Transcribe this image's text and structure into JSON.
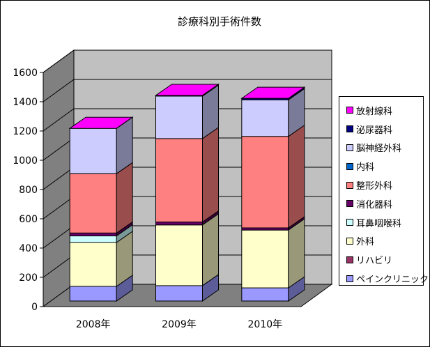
{
  "chart_data": {
    "type": "bar",
    "stacked": true,
    "three_d": true,
    "title": "診療科別手術件数",
    "categories": [
      "2008年",
      "2009年",
      "2010年"
    ],
    "ylim": [
      0,
      1600
    ],
    "yticks": [
      0,
      200,
      400,
      600,
      800,
      1000,
      1200,
      1400,
      1600
    ],
    "grid": true,
    "legend_position": "right",
    "series": [
      {
        "name": "ペインクリニック",
        "color": "#9999ff",
        "values": [
          100,
          105,
          90
        ]
      },
      {
        "name": "リハビリ",
        "color": "#993366",
        "values": [
          0,
          0,
          0
        ]
      },
      {
        "name": "外科",
        "color": "#ffffcc",
        "values": [
          300,
          415,
          395
        ]
      },
      {
        "name": "耳鼻咽喉科",
        "color": "#ccffff",
        "values": [
          45,
          0,
          0
        ]
      },
      {
        "name": "消化器科",
        "color": "#660066",
        "values": [
          20,
          20,
          15
        ]
      },
      {
        "name": "整形外科",
        "color": "#ff8080",
        "values": [
          405,
          570,
          625
        ]
      },
      {
        "name": "内科",
        "color": "#0066cc",
        "values": [
          0,
          0,
          0
        ]
      },
      {
        "name": "脳神経外科",
        "color": "#ccccff",
        "values": [
          310,
          290,
          250
        ]
      },
      {
        "name": "泌尿器科",
        "color": "#000080",
        "values": [
          0,
          5,
          10
        ]
      },
      {
        "name": "放射線科",
        "color": "#ff00ff",
        "values": [
          0,
          0,
          0
        ]
      }
    ]
  }
}
